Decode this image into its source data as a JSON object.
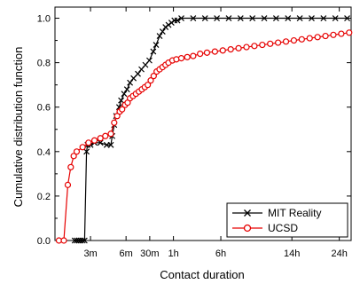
{
  "chart_data": {
    "type": "line",
    "xlabel": "Contact duration",
    "ylabel": "Cumulative distribution function",
    "ylim": [
      0,
      1.05
    ],
    "y_ticks": [
      0.0,
      0.2,
      0.4,
      0.6,
      0.8,
      1.0
    ],
    "y_tick_labels": [
      "0.0",
      "0.2",
      "0.4",
      "0.6",
      "0.8",
      "1.0"
    ],
    "x_unit": "minutes",
    "xlim": [
      0,
      1500
    ],
    "x_ticks": [
      {
        "value": 180,
        "label": "3m"
      },
      {
        "value": 360,
        "label": "6m"
      },
      {
        "value": 480,
        "label": "30m"
      },
      {
        "value": 600,
        "label": "1h"
      },
      {
        "value": 840,
        "label": "6h"
      },
      {
        "value": 1200,
        "label": "14h"
      },
      {
        "value": 1440,
        "label": "24h"
      }
    ],
    "legend_position": "bottom-right",
    "grid": false,
    "series": [
      {
        "name": "MIT Reality",
        "color": "#000000",
        "marker": "x",
        "points": [
          [
            100,
            0
          ],
          [
            110,
            0
          ],
          [
            120,
            0
          ],
          [
            130,
            0
          ],
          [
            140,
            0
          ],
          [
            150,
            0
          ],
          [
            160,
            0.4
          ],
          [
            165,
            0.43
          ],
          [
            180,
            0.43
          ],
          [
            200,
            0.44
          ],
          [
            230,
            0.44
          ],
          [
            262,
            0.43
          ],
          [
            283,
            0.43
          ],
          [
            290,
            0.47
          ],
          [
            300,
            0.52
          ],
          [
            310,
            0.56
          ],
          [
            325,
            0.6
          ],
          [
            335,
            0.63
          ],
          [
            350,
            0.66
          ],
          [
            365,
            0.68
          ],
          [
            380,
            0.71
          ],
          [
            398,
            0.73
          ],
          [
            420,
            0.75
          ],
          [
            438,
            0.77
          ],
          [
            458,
            0.79
          ],
          [
            478,
            0.81
          ],
          [
            498,
            0.85
          ],
          [
            512,
            0.88
          ],
          [
            530,
            0.92
          ],
          [
            545,
            0.94
          ],
          [
            560,
            0.96
          ],
          [
            575,
            0.97
          ],
          [
            590,
            0.98
          ],
          [
            605,
            0.99
          ],
          [
            620,
            0.99
          ],
          [
            640,
            1.0
          ],
          [
            700,
            1.0
          ],
          [
            760,
            1.0
          ],
          [
            820,
            1.0
          ],
          [
            880,
            1.0
          ],
          [
            940,
            1.0
          ],
          [
            1000,
            1.0
          ],
          [
            1060,
            1.0
          ],
          [
            1120,
            1.0
          ],
          [
            1180,
            1.0
          ],
          [
            1240,
            1.0
          ],
          [
            1300,
            1.0
          ],
          [
            1360,
            1.0
          ],
          [
            1420,
            1.0
          ],
          [
            1480,
            1.0
          ]
        ]
      },
      {
        "name": "UCSD",
        "color": "#e60000",
        "marker": "o",
        "points": [
          [
            20,
            0
          ],
          [
            45,
            0
          ],
          [
            65,
            0.25
          ],
          [
            80,
            0.33
          ],
          [
            95,
            0.38
          ],
          [
            110,
            0.4
          ],
          [
            140,
            0.42
          ],
          [
            170,
            0.44
          ],
          [
            200,
            0.45
          ],
          [
            230,
            0.46
          ],
          [
            255,
            0.47
          ],
          [
            283,
            0.48
          ],
          [
            300,
            0.53
          ],
          [
            315,
            0.56
          ],
          [
            328,
            0.58
          ],
          [
            340,
            0.59
          ],
          [
            355,
            0.61
          ],
          [
            368,
            0.62
          ],
          [
            380,
            0.64
          ],
          [
            395,
            0.65
          ],
          [
            410,
            0.66
          ],
          [
            425,
            0.67
          ],
          [
            440,
            0.68
          ],
          [
            455,
            0.69
          ],
          [
            470,
            0.7
          ],
          [
            485,
            0.72
          ],
          [
            500,
            0.74
          ],
          [
            515,
            0.76
          ],
          [
            530,
            0.77
          ],
          [
            545,
            0.78
          ],
          [
            560,
            0.79
          ],
          [
            575,
            0.8
          ],
          [
            595,
            0.81
          ],
          [
            615,
            0.815
          ],
          [
            640,
            0.82
          ],
          [
            670,
            0.825
          ],
          [
            700,
            0.83
          ],
          [
            735,
            0.84
          ],
          [
            770,
            0.845
          ],
          [
            810,
            0.85
          ],
          [
            850,
            0.855
          ],
          [
            890,
            0.86
          ],
          [
            930,
            0.865
          ],
          [
            970,
            0.87
          ],
          [
            1010,
            0.875
          ],
          [
            1050,
            0.88
          ],
          [
            1090,
            0.885
          ],
          [
            1130,
            0.89
          ],
          [
            1170,
            0.895
          ],
          [
            1210,
            0.9
          ],
          [
            1250,
            0.905
          ],
          [
            1290,
            0.91
          ],
          [
            1330,
            0.915
          ],
          [
            1370,
            0.92
          ],
          [
            1410,
            0.925
          ],
          [
            1450,
            0.93
          ],
          [
            1490,
            0.935
          ]
        ]
      }
    ]
  }
}
